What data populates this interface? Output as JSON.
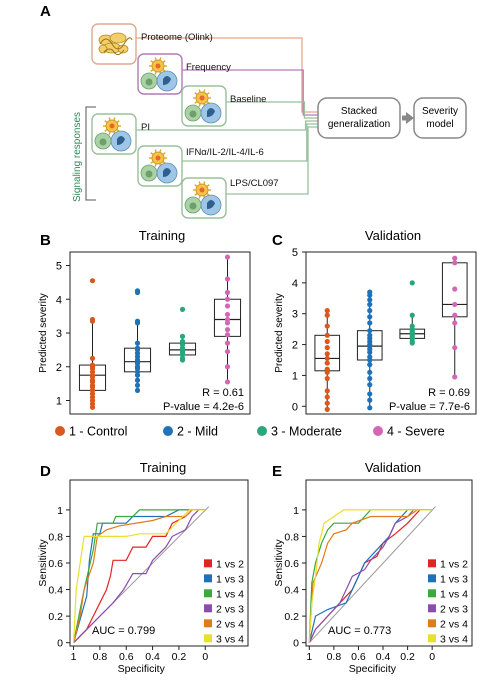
{
  "panels": {
    "a": "A",
    "b": "B",
    "c": "C",
    "d": "D",
    "e": "E"
  },
  "workflow": {
    "inputs": [
      {
        "label": "Proteome (Olink)",
        "color": "#e2a88f"
      },
      {
        "label": "Frequency",
        "color": "#b27ab7"
      },
      {
        "label": "Baseline",
        "color": "#9abf9c"
      },
      {
        "label": "PI",
        "color": "#9abf9c"
      },
      {
        "label": "IFNα/IL-2/IL-4/IL-6",
        "color": "#9abf9c"
      },
      {
        "label": "LPS/CL097",
        "color": "#9abf9c"
      }
    ],
    "signaling_label": "Signaling responses",
    "stacked_label_line1": "Stacked",
    "stacked_label_line2": "generalization",
    "severity_label_line1": "Severity",
    "severity_label_line2": "model"
  },
  "severity_groups": [
    {
      "label": "1 - Control",
      "color": "#d9581f"
    },
    {
      "label": "2 - Mild",
      "color": "#1f72b8"
    },
    {
      "label": "3 - Moderate",
      "color": "#2aa67c"
    },
    {
      "label": "4 - Severe",
      "color": "#d467b5"
    }
  ],
  "roc_colors": [
    "#e02424",
    "#1f72b8",
    "#3aa83a",
    "#8a4cad",
    "#e07b1a",
    "#e8e02a"
  ],
  "chart_data": [
    {
      "type": "box",
      "panel": "B",
      "title": "Training",
      "ylabel": "Predicted severity",
      "ylim": [
        0.6,
        5.4
      ],
      "yticks": [
        1,
        2,
        3,
        4,
        5
      ],
      "stat_r": "R = 0.61",
      "stat_p": "P-value = 4.2e-6",
      "groups": [
        {
          "name": "1 - Control",
          "min": 0.8,
          "q1": 1.3,
          "median": 1.75,
          "q3": 2.05,
          "max": 3.4,
          "points": [
            4.55,
            3.4,
            3.35,
            2.25,
            2.05,
            2.0,
            1.95,
            1.85,
            1.75,
            1.7,
            1.6,
            1.55,
            1.45,
            1.4,
            1.3,
            1.2,
            1.1,
            1.0,
            0.9,
            0.8
          ]
        },
        {
          "name": "2 - Mild",
          "min": 1.3,
          "q1": 1.85,
          "median": 2.15,
          "q3": 2.55,
          "max": 3.35,
          "points": [
            4.25,
            4.2,
            3.35,
            3.3,
            2.7,
            2.55,
            2.5,
            2.4,
            2.3,
            2.2,
            2.15,
            2.1,
            2.0,
            1.95,
            1.85,
            1.75,
            1.6,
            1.45,
            1.3
          ]
        },
        {
          "name": "3 - Moderate",
          "min": 2.2,
          "q1": 2.35,
          "median": 2.5,
          "q3": 2.7,
          "max": 2.9,
          "points": [
            3.7,
            2.9,
            2.75,
            2.65,
            2.55,
            2.5,
            2.45,
            2.4,
            2.35,
            2.25,
            2.2
          ]
        },
        {
          "name": "4 - Severe",
          "min": 1.55,
          "q1": 2.9,
          "median": 3.4,
          "q3": 4.0,
          "max": 5.25,
          "points": [
            5.25,
            4.6,
            4.2,
            4.0,
            3.8,
            3.55,
            3.4,
            3.3,
            3.1,
            2.95,
            2.7,
            2.45,
            2.0,
            1.55
          ]
        }
      ]
    },
    {
      "type": "box",
      "panel": "C",
      "title": "Validation",
      "ylabel": "Predicted severity",
      "ylim": [
        -0.25,
        5.0
      ],
      "yticks": [
        0,
        1,
        2,
        3,
        4,
        5
      ],
      "stat_r": "R = 0.69",
      "stat_p": "P-value = 7.7e-6",
      "groups": [
        {
          "name": "1 - Control",
          "min": -0.1,
          "q1": 1.15,
          "median": 1.55,
          "q3": 2.3,
          "max": 3.1,
          "points": [
            3.1,
            2.95,
            2.6,
            2.3,
            2.1,
            1.9,
            1.7,
            1.55,
            1.4,
            1.2,
            1.1,
            0.9,
            0.5,
            0.3,
            0.1,
            -0.1
          ]
        },
        {
          "name": "2 - Mild",
          "min": -0.05,
          "q1": 1.5,
          "median": 1.95,
          "q3": 2.45,
          "max": 3.7,
          "points": [
            3.7,
            3.6,
            3.45,
            3.3,
            3.1,
            2.9,
            2.7,
            2.45,
            2.3,
            2.2,
            2.1,
            2.0,
            1.95,
            1.85,
            1.75,
            1.6,
            1.5,
            1.35,
            1.1,
            0.9,
            0.7,
            0.4,
            0.2,
            -0.05
          ]
        },
        {
          "name": "3 - Moderate",
          "min": 2.05,
          "q1": 2.2,
          "median": 2.35,
          "q3": 2.5,
          "max": 2.95,
          "points": [
            4.0,
            2.95,
            2.6,
            2.5,
            2.45,
            2.4,
            2.35,
            2.3,
            2.25,
            2.2,
            2.1,
            2.05
          ]
        },
        {
          "name": "4 - Severe",
          "min": 0.95,
          "q1": 2.9,
          "median": 3.3,
          "q3": 4.65,
          "max": 4.8,
          "points": [
            4.8,
            4.65,
            3.8,
            3.3,
            2.95,
            2.7,
            1.9,
            0.95
          ]
        }
      ]
    },
    {
      "type": "line",
      "panel": "D",
      "title": "Training",
      "xlabel": "Specificity",
      "ylabel": "Sensitivity",
      "x_reversed": true,
      "xlim": [
        1,
        0
      ],
      "ylim": [
        0,
        1
      ],
      "xticks": [
        1,
        0.8,
        0.6,
        0.4,
        0.2,
        0
      ],
      "yticks": [
        0,
        0.2,
        0.4,
        0.6,
        0.8,
        1
      ],
      "auc_text": "AUC = 0.799",
      "series": [
        {
          "name": "1 vs 2",
          "points": [
            [
              1,
              0
            ],
            [
              0.9,
              0.1
            ],
            [
              0.85,
              0.2
            ],
            [
              0.8,
              0.3
            ],
            [
              0.75,
              0.4
            ],
            [
              0.72,
              0.5
            ],
            [
              0.7,
              0.62
            ],
            [
              0.6,
              0.62
            ],
            [
              0.55,
              0.72
            ],
            [
              0.45,
              0.72
            ],
            [
              0.4,
              0.8
            ],
            [
              0.3,
              0.8
            ],
            [
              0.25,
              0.9
            ],
            [
              0.15,
              0.95
            ],
            [
              0.1,
              1
            ],
            [
              0,
              1
            ]
          ]
        },
        {
          "name": "1 vs 3",
          "points": [
            [
              1,
              0
            ],
            [
              0.9,
              0.35
            ],
            [
              0.88,
              0.62
            ],
            [
              0.85,
              0.82
            ],
            [
              0.8,
              0.82
            ],
            [
              0.78,
              0.9
            ],
            [
              0.6,
              0.9
            ],
            [
              0.55,
              0.95
            ],
            [
              0.3,
              0.95
            ],
            [
              0.2,
              1
            ],
            [
              0,
              1
            ]
          ]
        },
        {
          "name": "1 vs 4",
          "points": [
            [
              1,
              0
            ],
            [
              0.92,
              0.4
            ],
            [
              0.85,
              0.7
            ],
            [
              0.82,
              0.9
            ],
            [
              0.7,
              0.9
            ],
            [
              0.68,
              0.95
            ],
            [
              0.55,
              0.95
            ],
            [
              0.5,
              1
            ],
            [
              0,
              1
            ]
          ]
        },
        {
          "name": "2 vs 3",
          "points": [
            [
              1,
              0
            ],
            [
              0.9,
              0.1
            ],
            [
              0.8,
              0.2
            ],
            [
              0.7,
              0.3
            ],
            [
              0.62,
              0.4
            ],
            [
              0.55,
              0.52
            ],
            [
              0.45,
              0.52
            ],
            [
              0.4,
              0.62
            ],
            [
              0.3,
              0.72
            ],
            [
              0.25,
              0.8
            ],
            [
              0.15,
              0.85
            ],
            [
              0.1,
              0.95
            ],
            [
              0.05,
              1
            ],
            [
              0,
              1
            ]
          ]
        },
        {
          "name": "2 vs 4",
          "points": [
            [
              1,
              0
            ],
            [
              0.95,
              0.2
            ],
            [
              0.92,
              0.4
            ],
            [
              0.85,
              0.6
            ],
            [
              0.82,
              0.8
            ],
            [
              0.75,
              0.85
            ],
            [
              0.65,
              0.88
            ],
            [
              0.4,
              0.92
            ],
            [
              0.3,
              0.95
            ],
            [
              0.15,
              0.95
            ],
            [
              0.1,
              1
            ],
            [
              0,
              1
            ]
          ]
        },
        {
          "name": "3 vs 4",
          "points": [
            [
              1,
              0
            ],
            [
              0.98,
              0.4
            ],
            [
              0.95,
              0.6
            ],
            [
              0.92,
              0.8
            ],
            [
              0.6,
              0.8
            ],
            [
              0.5,
              0.82
            ],
            [
              0.3,
              0.82
            ],
            [
              0.2,
              0.92
            ],
            [
              0.12,
              1
            ],
            [
              0,
              1
            ]
          ]
        }
      ]
    },
    {
      "type": "line",
      "panel": "E",
      "title": "Validation",
      "xlabel": "Specificity",
      "ylabel": "Sensitivity",
      "x_reversed": true,
      "xlim": [
        1,
        0
      ],
      "ylim": [
        0,
        1
      ],
      "xticks": [
        1,
        0.8,
        0.6,
        0.4,
        0.2,
        0
      ],
      "yticks": [
        0,
        0.2,
        0.4,
        0.6,
        0.8,
        1
      ],
      "auc_text": "AUC = 0.773",
      "series": [
        {
          "name": "1 vs 2",
          "points": [
            [
              1,
              0
            ],
            [
              0.95,
              0.1
            ],
            [
              0.85,
              0.2
            ],
            [
              0.75,
              0.3
            ],
            [
              0.65,
              0.4
            ],
            [
              0.6,
              0.5
            ],
            [
              0.55,
              0.6
            ],
            [
              0.45,
              0.65
            ],
            [
              0.4,
              0.75
            ],
            [
              0.3,
              0.82
            ],
            [
              0.2,
              0.9
            ],
            [
              0.1,
              1
            ],
            [
              0,
              1
            ]
          ]
        },
        {
          "name": "1 vs 3",
          "points": [
            [
              1,
              0
            ],
            [
              0.95,
              0.2
            ],
            [
              0.85,
              0.25
            ],
            [
              0.7,
              0.3
            ],
            [
              0.6,
              0.5
            ],
            [
              0.55,
              0.6
            ],
            [
              0.45,
              0.7
            ],
            [
              0.35,
              0.8
            ],
            [
              0.3,
              0.9
            ],
            [
              0.2,
              1
            ],
            [
              0,
              1
            ]
          ]
        },
        {
          "name": "1 vs 4",
          "points": [
            [
              1,
              0
            ],
            [
              0.98,
              0.45
            ],
            [
              0.95,
              0.6
            ],
            [
              0.9,
              0.75
            ],
            [
              0.85,
              0.85
            ],
            [
              0.8,
              0.9
            ],
            [
              0.6,
              0.9
            ],
            [
              0.55,
              0.95
            ],
            [
              0.5,
              1
            ],
            [
              0,
              1
            ]
          ]
        },
        {
          "name": "2 vs 3",
          "points": [
            [
              1,
              0
            ],
            [
              0.95,
              0.1
            ],
            [
              0.85,
              0.2
            ],
            [
              0.75,
              0.3
            ],
            [
              0.7,
              0.4
            ],
            [
              0.65,
              0.5
            ],
            [
              0.55,
              0.55
            ],
            [
              0.5,
              0.62
            ],
            [
              0.4,
              0.72
            ],
            [
              0.35,
              0.8
            ],
            [
              0.3,
              0.9
            ],
            [
              0.2,
              0.95
            ],
            [
              0.15,
              1
            ],
            [
              0,
              1
            ]
          ]
        },
        {
          "name": "2 vs 4",
          "points": [
            [
              1,
              0
            ],
            [
              0.97,
              0.45
            ],
            [
              0.9,
              0.6
            ],
            [
              0.85,
              0.75
            ],
            [
              0.8,
              0.82
            ],
            [
              0.7,
              0.85
            ],
            [
              0.65,
              0.9
            ],
            [
              0.5,
              0.95
            ],
            [
              0.2,
              0.95
            ],
            [
              0.12,
              1
            ],
            [
              0,
              1
            ]
          ]
        },
        {
          "name": "3 vs 4",
          "points": [
            [
              1,
              0
            ],
            [
              0.98,
              0.3
            ],
            [
              0.95,
              0.5
            ],
            [
              0.92,
              0.75
            ],
            [
              0.88,
              0.9
            ],
            [
              0.8,
              0.95
            ],
            [
              0.72,
              1
            ],
            [
              0,
              1
            ]
          ]
        }
      ]
    }
  ]
}
